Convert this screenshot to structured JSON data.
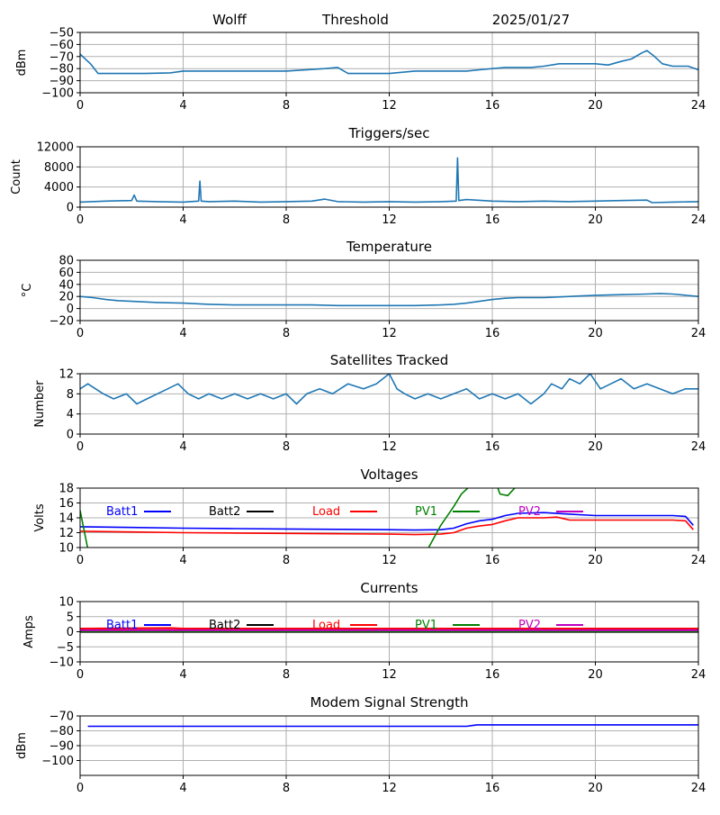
{
  "header": {
    "station": "Wolff",
    "title": "Threshold",
    "date": "2025/01/27"
  },
  "colors": {
    "blue": "#1f77b4",
    "pure_blue": "#0000ff",
    "black": "#000000",
    "red": "#ff0000",
    "green": "#008000",
    "magenta": "#bf00bf",
    "grid": "#b0b0b0"
  },
  "chart_data": [
    {
      "type": "line",
      "title": "",
      "ylabel": "dBm",
      "xlim": [
        0,
        24
      ],
      "xticks": [
        0,
        4,
        8,
        12,
        16,
        20,
        24
      ],
      "ylim": [
        -100,
        -50
      ],
      "yticks": [
        -100,
        -90,
        -80,
        -70,
        -60,
        -50
      ],
      "grid": true,
      "series": [
        {
          "color": "#1f77b4",
          "x": [
            0,
            0.4,
            0.7,
            1.5,
            2.5,
            3.5,
            4,
            6,
            8,
            9.5,
            10,
            10.4,
            12,
            13,
            14,
            15,
            15.5,
            16,
            16.5,
            17.5,
            18,
            18.6,
            19,
            20,
            20.5,
            21,
            21.4,
            21.8,
            22,
            22.3,
            22.6,
            23,
            23.6,
            24
          ],
          "y": [
            -68,
            -76,
            -84,
            -84,
            -84,
            -83.5,
            -82,
            -82,
            -82,
            -80,
            -79,
            -84,
            -84,
            -82,
            -82,
            -82,
            -81,
            -80,
            -79,
            -79,
            -78,
            -76,
            -76,
            -76,
            -77,
            -74,
            -72,
            -67,
            -65,
            -70,
            -76,
            -78,
            -78,
            -81
          ]
        }
      ]
    },
    {
      "type": "line",
      "title": "Triggers/sec",
      "ylabel": "Count",
      "xlim": [
        0,
        24
      ],
      "xticks": [
        0,
        4,
        8,
        12,
        16,
        20,
        24
      ],
      "ylim": [
        0,
        12000
      ],
      "yticks": [
        0,
        4000,
        8000,
        12000
      ],
      "grid": true,
      "series": [
        {
          "color": "#1f77b4",
          "x": [
            0,
            1,
            2,
            2.1,
            2.2,
            3,
            4,
            4.6,
            4.65,
            4.7,
            5,
            6,
            7,
            8,
            9,
            9.5,
            10,
            11,
            12,
            13,
            14,
            14.6,
            14.65,
            14.7,
            15,
            16,
            17,
            18,
            19,
            20,
            21,
            22,
            22.2,
            23,
            24
          ],
          "y": [
            1000,
            1200,
            1300,
            2400,
            1200,
            1100,
            1000,
            1200,
            5200,
            1200,
            1100,
            1200,
            1000,
            1100,
            1200,
            1600,
            1100,
            1000,
            1100,
            1000,
            1100,
            1200,
            9800,
            1300,
            1500,
            1200,
            1100,
            1200,
            1100,
            1200,
            1300,
            1400,
            900,
            1000,
            1100
          ]
        }
      ]
    },
    {
      "type": "line",
      "title": "Temperature",
      "ylabel": "°C",
      "xlim": [
        0,
        24
      ],
      "xticks": [
        0,
        4,
        8,
        12,
        16,
        20,
        24
      ],
      "ylim": [
        -20,
        80
      ],
      "yticks": [
        -20,
        0,
        20,
        40,
        60,
        80
      ],
      "grid": true,
      "series": [
        {
          "color": "#1f77b4",
          "x": [
            0,
            0.5,
            1,
            1.5,
            2,
            3,
            4,
            5,
            6,
            7,
            8,
            9,
            10,
            11,
            12,
            13,
            14,
            14.5,
            15,
            15.5,
            16,
            16.5,
            17,
            18,
            19,
            20,
            21,
            22,
            22.5,
            23,
            24
          ],
          "y": [
            20,
            18,
            15,
            13,
            12,
            10,
            9,
            7,
            6,
            6,
            6,
            6,
            5,
            5,
            5,
            5,
            6,
            7,
            9,
            12,
            15,
            17,
            18,
            18,
            20,
            22,
            23,
            24,
            25,
            24,
            20
          ]
        }
      ]
    },
    {
      "type": "line",
      "title": "Satellites Tracked",
      "ylabel": "Number",
      "xlim": [
        0,
        24
      ],
      "xticks": [
        0,
        4,
        8,
        12,
        16,
        20,
        24
      ],
      "ylim": [
        0,
        12
      ],
      "yticks": [
        0,
        4,
        8,
        12
      ],
      "grid": true,
      "series": [
        {
          "color": "#1f77b4",
          "x": [
            0,
            0.3,
            0.6,
            0.9,
            1.3,
            1.8,
            2.2,
            2.6,
            3,
            3.4,
            3.8,
            4.2,
            4.6,
            5,
            5.5,
            6,
            6.5,
            7,
            7.5,
            8,
            8.4,
            8.8,
            9.3,
            9.8,
            10.4,
            11,
            11.5,
            12,
            12.3,
            12.6,
            13,
            13.5,
            14,
            14.5,
            15,
            15.5,
            16,
            16.5,
            17,
            17.5,
            18,
            18.3,
            18.7,
            19,
            19.4,
            19.8,
            20.2,
            20.6,
            21,
            21.5,
            22,
            22.5,
            23,
            23.5,
            24
          ],
          "y": [
            9,
            10,
            9,
            8,
            7,
            8,
            6,
            7,
            8,
            9,
            10,
            8,
            7,
            8,
            7,
            8,
            7,
            8,
            7,
            8,
            6,
            8,
            9,
            8,
            10,
            9,
            10,
            12,
            9,
            8,
            7,
            8,
            7,
            8,
            9,
            7,
            8,
            7,
            8,
            6,
            8,
            10,
            9,
            11,
            10,
            12,
            9,
            10,
            11,
            9,
            10,
            9,
            8,
            9,
            9
          ]
        }
      ]
    },
    {
      "type": "line",
      "title": "Voltages",
      "ylabel": "Volts",
      "xlim": [
        0,
        24
      ],
      "xticks": [
        0,
        4,
        8,
        12,
        16,
        20,
        24
      ],
      "ylim": [
        10,
        18
      ],
      "yticks": [
        10,
        12,
        14,
        16,
        18
      ],
      "grid": true,
      "legend": "top-row",
      "series": [
        {
          "name": "Batt1",
          "color": "#0000ff",
          "x": [
            0,
            2,
            4,
            6,
            8,
            10,
            12,
            13,
            14,
            14.5,
            15,
            15.5,
            16,
            16.5,
            17,
            18,
            19,
            20,
            21,
            22,
            23,
            23.5,
            23.8
          ],
          "y": [
            12.8,
            12.7,
            12.6,
            12.55,
            12.5,
            12.45,
            12.4,
            12.35,
            12.4,
            12.6,
            13.2,
            13.6,
            13.8,
            14.3,
            14.6,
            14.7,
            14.5,
            14.3,
            14.3,
            14.3,
            14.3,
            14.2,
            13
          ]
        },
        {
          "name": "Batt2",
          "color": "#000000",
          "x": [],
          "y": []
        },
        {
          "name": "Load",
          "color": "#ff0000",
          "x": [
            0,
            2,
            4,
            6,
            8,
            10,
            12,
            13,
            14,
            14.5,
            15,
            15.5,
            16,
            16.5,
            17,
            18,
            18.5,
            19,
            20,
            21,
            22,
            23,
            23.5,
            23.8
          ],
          "y": [
            12.2,
            12.1,
            12.0,
            11.95,
            11.9,
            11.85,
            11.8,
            11.75,
            11.8,
            12.0,
            12.6,
            12.9,
            13.1,
            13.6,
            14.0,
            14.0,
            14.1,
            13.7,
            13.7,
            13.7,
            13.7,
            13.7,
            13.6,
            12.4
          ]
        },
        {
          "name": "PV1",
          "color": "#008000",
          "x": [
            0,
            0.3,
            13.5,
            14,
            14.5,
            14.8,
            15.2,
            15.5,
            16,
            16.3,
            16.6,
            17
          ],
          "y": [
            15,
            9.8,
            9.8,
            13,
            15.5,
            17.2,
            18.5,
            19.5,
            20,
            17.2,
            17,
            18.5
          ]
        },
        {
          "name": "PV2",
          "color": "#bf00bf",
          "x": [],
          "y": []
        }
      ]
    },
    {
      "type": "line",
      "title": "Currents",
      "ylabel": "Amps",
      "xlim": [
        0,
        24
      ],
      "xticks": [
        0,
        4,
        8,
        12,
        16,
        20,
        24
      ],
      "ylim": [
        -10,
        10
      ],
      "yticks": [
        -10,
        -5,
        0,
        5,
        10
      ],
      "grid": true,
      "legend": "top-row",
      "series": [
        {
          "name": "Batt1",
          "color": "#0000ff",
          "x": [
            0,
            4,
            8,
            12,
            16,
            18.5,
            19,
            24
          ],
          "y": [
            0.4,
            0.4,
            0.4,
            0.4,
            0.4,
            1.0,
            0.4,
            0.4
          ]
        },
        {
          "name": "Batt2",
          "color": "#000000",
          "x": [
            0,
            24
          ],
          "y": [
            0,
            0
          ]
        },
        {
          "name": "Load",
          "color": "#ff0000",
          "x": [
            0,
            3.5,
            4,
            12,
            16,
            20,
            24
          ],
          "y": [
            1.0,
            1.2,
            1.0,
            1.0,
            1.0,
            1.0,
            1.0
          ]
        },
        {
          "name": "PV1",
          "color": "#008000",
          "x": [
            0,
            24
          ],
          "y": [
            0.2,
            0.2
          ]
        },
        {
          "name": "PV2",
          "color": "#bf00bf",
          "x": [
            0,
            24
          ],
          "y": [
            0.5,
            0.5
          ]
        }
      ]
    },
    {
      "type": "line",
      "title": "Modem Signal Strength",
      "ylabel": "dBm",
      "xlim": [
        0,
        24
      ],
      "xticks": [
        0,
        4,
        8,
        12,
        16,
        20,
        24
      ],
      "ylim": [
        -110,
        -70
      ],
      "yticks": [
        -100,
        -90,
        -80,
        -70
      ],
      "grid": true,
      "series": [
        {
          "color": "#0000ff",
          "x": [
            0.3,
            15,
            15.4,
            24
          ],
          "y": [
            -77,
            -77,
            -76,
            -76
          ]
        }
      ]
    }
  ]
}
